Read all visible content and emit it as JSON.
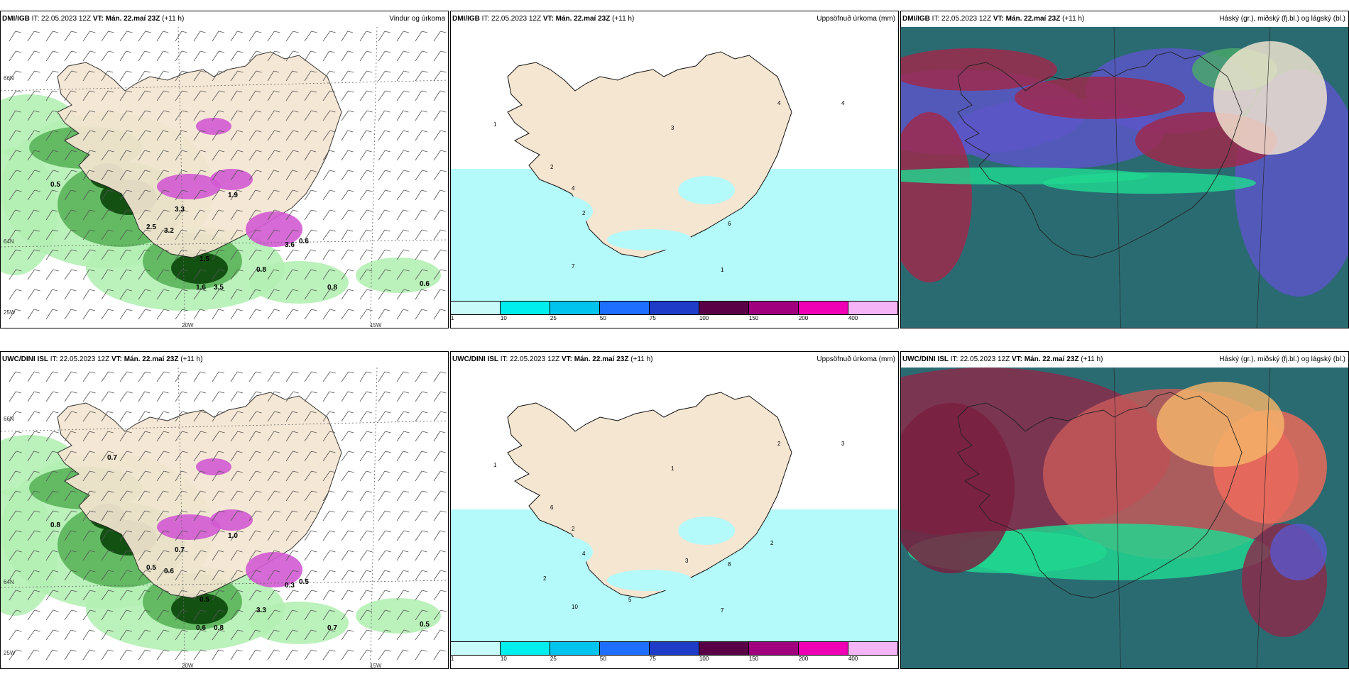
{
  "panels": [
    {
      "model": "DMI/IGB",
      "it": "IT: 22.05.2023 12Z",
      "vt": "VT: Mán. 22.maí 23Z",
      "lead": "(+11 h)",
      "title": "Vindur og úrkoma",
      "type": "wind"
    },
    {
      "model": "DMI/IGB",
      "it": "IT: 22.05.2023 12Z",
      "vt": "VT: Mán. 22.maí 23Z",
      "lead": "(+11 h)",
      "title": "Uppsöfnuð úrkoma (mm)",
      "type": "accum"
    },
    {
      "model": "DMI/IGB",
      "it": "IT: 22.05.2023 12Z",
      "vt": "VT: Mán. 22.maí 23Z",
      "lead": "(+11 h)",
      "title": "Háský (gr.), miðský (fj.bl.) og lágský (bl.)",
      "type": "cloud"
    },
    {
      "model": "UWC/DINI ISL",
      "it": "IT: 22.05.2023 12Z",
      "vt": "VT: Mán. 22.maí 23Z",
      "lead": "(+11 h)",
      "title": "",
      "type": "wind"
    },
    {
      "model": "UWC/DINI ISL",
      "it": "IT: 22.05.2023 12Z",
      "vt": "VT: Mán. 22.maí 23Z",
      "lead": "(+11 h)",
      "title": "Uppsöfnuð úrkoma (mm)",
      "type": "accum"
    },
    {
      "model": "UWC/DINI ISL",
      "it": "IT: 22.05.2023 12Z",
      "vt": "VT: Mán. 22.maí 23Z",
      "lead": "(+11 h)",
      "title": "Háský (gr.), miðský (fj.bl.) og lágský (bl.)",
      "type": "cloud"
    }
  ],
  "axes": {
    "lat66": "66N",
    "lat64": "64N",
    "lon20": "20W",
    "lon15": "15W",
    "lon25": "25W"
  },
  "colorbar": {
    "ticks": [
      "1",
      "10",
      "25",
      "50",
      "75",
      "100",
      "150",
      "200",
      "400"
    ],
    "colors": [
      "#c8fafa",
      "#00eeee",
      "#00c4ee",
      "#1e6eff",
      "#1e3cc8",
      "#5a0046",
      "#a0007e",
      "#f000b4",
      "#f5b4f5"
    ]
  },
  "colors": {
    "land": "#f5e6d2",
    "precip_light": "#b4f0b4",
    "precip_mid": "#5ab45a",
    "precip_dark": "#0a460a",
    "snow": "#d25ad2",
    "accum_light": "#b4fafa"
  },
  "values_top_wind": [
    "0.5",
    "3.3",
    "3.2",
    "2.5",
    "1.5",
    "0.8",
    "0.8",
    "0.6",
    "1.9",
    "3.6",
    "3.5",
    "1.6",
    "0.6"
  ],
  "values_bot_wind": [
    "0.8",
    "0.7",
    "0.6",
    "0.5",
    "0.5",
    "3.3",
    "0.7",
    "0.5",
    "1.0",
    "0.3",
    "0.8",
    "0.6",
    "0.5",
    "0.7"
  ],
  "values_top_accum": [
    "1",
    "3",
    "4",
    "4",
    "4",
    "2",
    "2",
    "1",
    "6",
    "7"
  ],
  "values_bot_accum": [
    "1",
    "1",
    "2",
    "3",
    "2",
    "4",
    "6",
    "7",
    "8",
    "10",
    "3",
    "2",
    "5",
    "2"
  ]
}
